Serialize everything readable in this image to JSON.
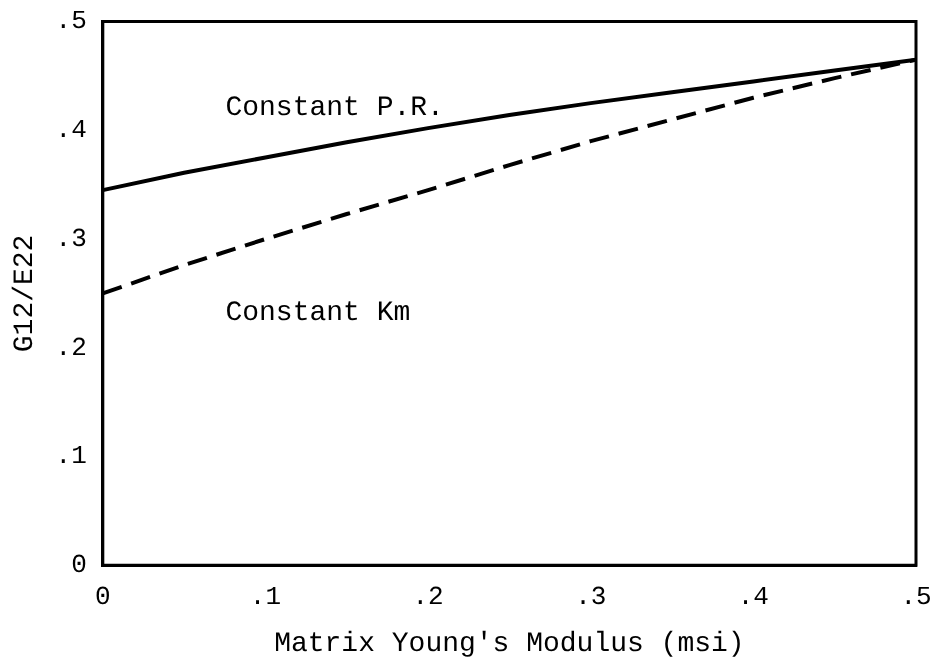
{
  "chart_data": {
    "type": "line",
    "xlabel": "Matrix Young's Modulus (msi)",
    "ylabel": "G12/E22",
    "x": [
      0,
      0.05,
      0.1,
      0.15,
      0.2,
      0.25,
      0.3,
      0.35,
      0.4,
      0.45,
      0.5
    ],
    "series": [
      {
        "name": "Constant P.R.",
        "color": "#000000",
        "line_style": "solid",
        "values": [
          0.345,
          0.361,
          0.375,
          0.389,
          0.402,
          0.414,
          0.425,
          0.435,
          0.445,
          0.455,
          0.465
        ]
      },
      {
        "name": "Constant Km",
        "color": "#000000",
        "line_style": "dashed",
        "values": [
          0.25,
          0.276,
          0.3,
          0.323,
          0.345,
          0.368,
          0.39,
          0.41,
          0.43,
          0.448,
          0.465
        ]
      }
    ],
    "xlim": [
      0,
      0.5
    ],
    "xticks": [
      {
        "value": 0,
        "label": "0"
      },
      {
        "value": 0.1,
        "label": ".1"
      },
      {
        "value": 0.2,
        "label": ".2"
      },
      {
        "value": 0.3,
        "label": ".3"
      },
      {
        "value": 0.4,
        "label": ".4"
      },
      {
        "value": 0.5,
        "label": ".5"
      }
    ],
    "ylim": [
      0,
      0.5
    ],
    "yticks": [
      {
        "value": 0,
        "label": "0"
      },
      {
        "value": 0.1,
        "label": ".1"
      },
      {
        "value": 0.2,
        "label": ".2"
      },
      {
        "value": 0.3,
        "label": ".3"
      },
      {
        "value": 0.4,
        "label": ".4"
      },
      {
        "value": 0.5,
        "label": ".5"
      }
    ],
    "grid": false,
    "legend": false,
    "marker": "none"
  }
}
